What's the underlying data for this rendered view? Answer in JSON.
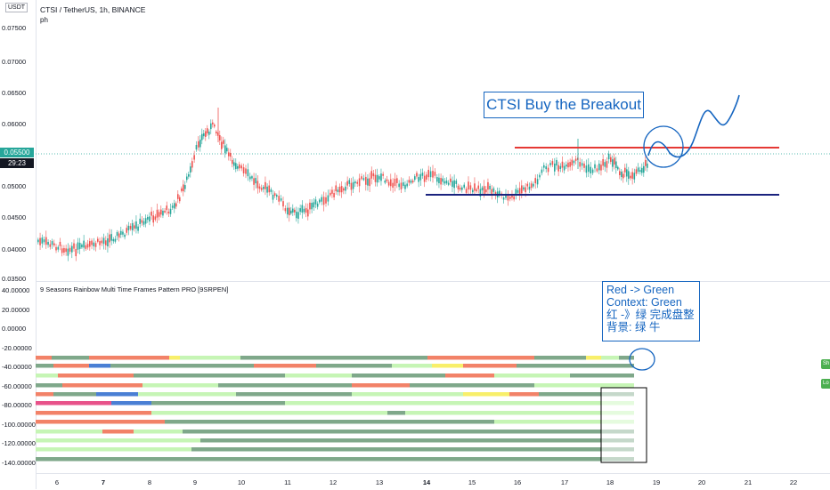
{
  "chart": {
    "title": "CTSI / TetherUS, 1h, BINANCE",
    "subtitle": "ph",
    "currency_badge": "USDT",
    "current_price": "0.05500",
    "countdown": "29:23",
    "price_tag_color": "#26a69a",
    "countdown_color": "#131722"
  },
  "price_axis": {
    "labels": [
      "0.07500",
      "0.07000",
      "0.06500",
      "0.06000",
      "0.05500",
      "0.05000",
      "0.04500",
      "0.04000",
      "0.03500"
    ]
  },
  "indicator": {
    "title": "9 Seasons Rainbow Multi Time Frames Pattern PRO [9SRPEN]",
    "axis_labels": [
      "40.00000",
      "20.00000",
      "0.00000",
      "-20.00000",
      "-40.00000",
      "-60.00000",
      "-80.00000",
      "-100.00000",
      "-120.00000",
      "-140.00000"
    ],
    "side_buttons": [
      "Sh",
      "Lo"
    ]
  },
  "time_axis": {
    "labels": [
      "6",
      "7",
      "8",
      "9",
      "10",
      "11",
      "12",
      "13",
      "14",
      "15",
      "16",
      "17",
      "18",
      "19",
      "20",
      "21",
      "22"
    ],
    "bold": [
      "7",
      "14"
    ]
  },
  "annotations": {
    "headline": "CTSI Buy the Breakout",
    "note_lines": [
      "Red -> Green",
      "Context: Green",
      "红 -》绿 完成盘整",
      "背景:  绿 牛"
    ],
    "resistance_color": "#e53935",
    "support_color": "#1a237e",
    "drawing_color": "#1565c0"
  },
  "colors": {
    "up": "#26a69a",
    "down": "#ef5350",
    "stripe_dark_green": "#7fa88a",
    "stripe_light_green": "#c6f5b5",
    "stripe_salmon": "#f28268",
    "stripe_yellow": "#f8ef6a",
    "stripe_blue": "#4a7fd4",
    "stripe_pink": "#e8528a"
  }
}
